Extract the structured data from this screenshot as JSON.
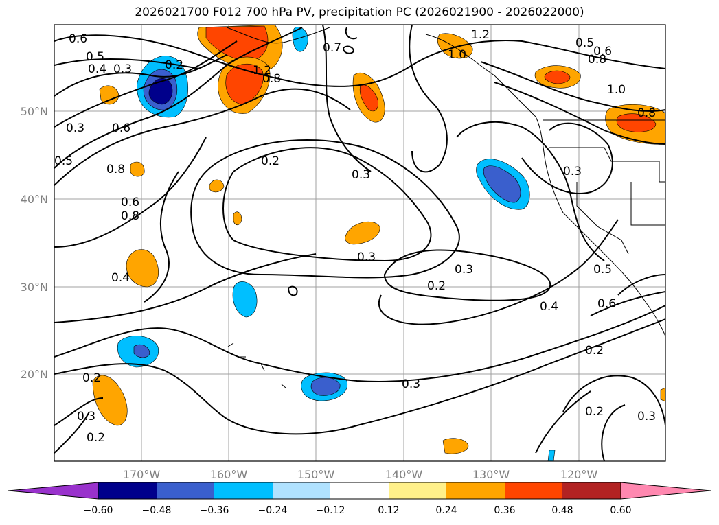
{
  "title": "2026021700 F012 700 hPa PV, precipitation PC (2026021900 - 2026022000)",
  "lon_labels": [
    "170°W",
    "160°W",
    "150°W",
    "140°W",
    "130°W",
    "120°W"
  ],
  "lat_labels": [
    "50°N",
    "40°N",
    "30°N",
    "20°N"
  ],
  "colorbar": {
    "ticks": [
      "−0.60",
      "−0.48",
      "−0.36",
      "−0.24",
      "−0.12",
      "0.12",
      "0.24",
      "0.36",
      "0.48",
      "0.60"
    ],
    "colors": [
      "#9932cc",
      "#00008b",
      "#3a5fcd",
      "#00bfff",
      "#b0e2ff",
      "#ffffff",
      "#fff08a",
      "#ffa500",
      "#ff4500",
      "#b22222",
      "#ff88b0"
    ]
  },
  "contour_labels": [
    "0.6",
    "0.5",
    "0.4",
    "0.3",
    "0.2",
    "0.3",
    "0.6",
    "0.5",
    "0.8",
    "1.2",
    "0.8",
    "0.7",
    "1.2",
    "0.5",
    "0.6",
    "0.8",
    "1.0",
    "1.0",
    "0.8",
    "0.2",
    "0.3",
    "0.8",
    "0.6",
    "0.3",
    "0.4",
    "0.3",
    "0.3",
    "0.2",
    "0.2",
    "0.4",
    "0.5",
    "0.6",
    "0.2",
    "0.3",
    "0.2",
    "0.3",
    "0.2",
    "0.3"
  ]
}
